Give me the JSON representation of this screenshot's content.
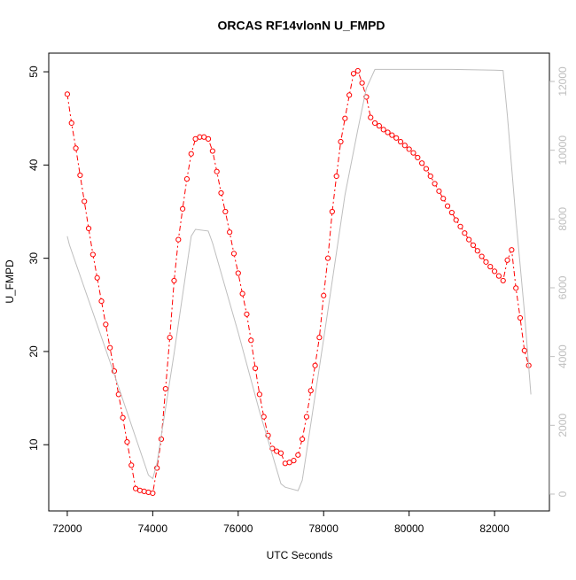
{
  "chart_data": {
    "type": "line",
    "title": "ORCAS RF14vlonN U_FMPD",
    "x_label": "UTC Seconds",
    "y_label": "U_FMPD",
    "xlim": [
      71566,
      83284
    ],
    "xticks": [
      72000,
      74000,
      76000,
      78000,
      80000,
      82000
    ],
    "ylim": [
      2.9,
      52.0
    ],
    "yticks": [
      10,
      20,
      30,
      40,
      50
    ],
    "y2lim": [
      -490,
      12824
    ],
    "y2ticks": [
      0,
      2000,
      4000,
      6000,
      8000,
      10000,
      12000
    ],
    "series": [
      {
        "color": "#ff0000",
        "x": [
          72000,
          72100,
          72200,
          72300,
          72400,
          72500,
          72600,
          72700,
          72800,
          72900,
          73000,
          73100,
          73200,
          73300,
          73400,
          73500,
          73600,
          73700,
          73800,
          73900,
          74000,
          74100,
          74200,
          74300,
          74400,
          74500,
          74600,
          74700,
          74800,
          74900,
          75000,
          75100,
          75200,
          75300,
          75400,
          75500,
          75600,
          75700,
          75800,
          75900,
          76000,
          76100,
          76200,
          76300,
          76400,
          76500,
          76600,
          76700,
          76800,
          76900,
          77000,
          77100,
          77200,
          77300,
          77400,
          77500,
          77600,
          77700,
          77800,
          77900,
          78000,
          78100,
          78200,
          78300,
          78400,
          78500,
          78600,
          78700,
          78800,
          78900,
          79000,
          79100,
          79200,
          79300,
          79400,
          79500,
          79600,
          79700,
          79800,
          79900,
          80000,
          80100,
          80200,
          80300,
          80400,
          80500,
          80600,
          80700,
          80800,
          80900,
          81000,
          81100,
          81200,
          81300,
          81400,
          81500,
          81600,
          81700,
          81800,
          81900,
          82000,
          82100,
          82200,
          82300,
          82400,
          82500,
          82600,
          82700,
          82800
        ],
        "values": [
          47.6,
          44.5,
          41.8,
          38.9,
          36.1,
          33.2,
          30.4,
          27.9,
          25.4,
          22.9,
          20.4,
          17.9,
          15.4,
          12.9,
          10.3,
          7.8,
          5.3,
          5.1,
          5.0,
          4.9,
          4.8,
          7.5,
          10.6,
          16.0,
          21.5,
          27.6,
          32.0,
          35.3,
          38.5,
          41.2,
          42.8,
          43.0,
          43.0,
          42.8,
          41.5,
          39.3,
          37.0,
          35.0,
          32.8,
          30.5,
          28.4,
          26.2,
          24.0,
          21.2,
          18.2,
          15.4,
          13.0,
          11.0,
          9.6,
          9.3,
          9.1,
          8.0,
          8.1,
          8.3,
          8.9,
          10.6,
          13.0,
          15.8,
          18.5,
          21.5,
          26.0,
          30.0,
          35.0,
          38.8,
          42.5,
          45.0,
          47.5,
          49.8,
          50.1,
          48.8,
          47.3,
          45.1,
          44.5,
          44.2,
          43.8,
          43.5,
          43.2,
          42.9,
          42.5,
          42.1,
          41.7,
          41.3,
          40.8,
          40.2,
          39.6,
          38.8,
          38.0,
          37.2,
          36.4,
          35.6,
          34.9,
          34.1,
          33.4,
          32.7,
          32.0,
          31.4,
          30.8,
          30.2,
          29.6,
          29.1,
          28.6,
          28.1,
          27.6,
          29.8,
          30.9,
          26.8,
          23.6,
          20.1,
          18.5
        ]
      },
      {
        "color": "#bebebe",
        "axis": "y2",
        "x": [
          72000,
          72050,
          73000,
          73900,
          74000,
          74100,
          74500,
          74900,
          75000,
          75300,
          75400,
          76000,
          76500,
          77000,
          77100,
          77400,
          77500,
          78000,
          78500,
          78800,
          79000,
          79200,
          80000,
          81000,
          82000,
          82200,
          82300,
          82500,
          82700,
          82850
        ],
        "values": [
          7500,
          7250,
          3850,
          550,
          450,
          900,
          4100,
          7500,
          7700,
          7650,
          7300,
          4700,
          2400,
          300,
          200,
          100,
          400,
          4500,
          8700,
          10600,
          11800,
          12350,
          12350,
          12350,
          12330,
          12320,
          11000,
          8000,
          5300,
          2900
        ]
      }
    ]
  }
}
